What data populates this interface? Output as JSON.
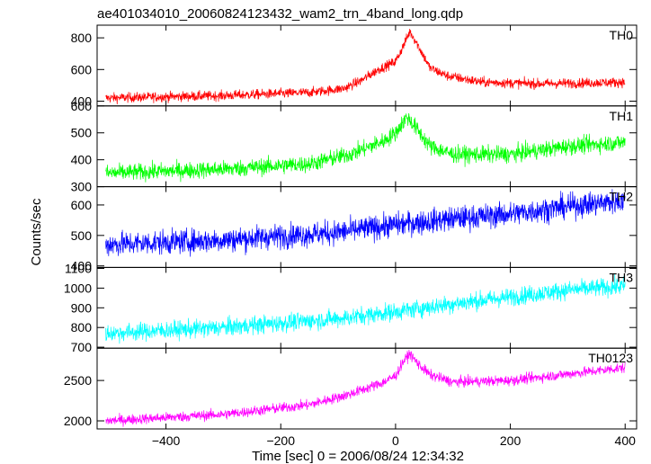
{
  "chart_data": {
    "type": "line",
    "title": "ae401034010_20060824123432_wam2_trn_4band_long.qdp",
    "xlabel": "Time [sec] 0 = 2006/08/24 12:34:32",
    "ylabel": "Counts/sec",
    "xlim": [
      -520,
      420
    ],
    "x_ticks": [
      -400,
      -200,
      0,
      200,
      400
    ],
    "x_tick_labels": [
      "−400",
      "−200",
      "0",
      "200",
      "400"
    ],
    "data_x_range": [
      -505,
      400
    ],
    "grid": false,
    "panels": [
      {
        "name": "TH0",
        "color": "#ff0000",
        "ylim": [
          370,
          880
        ],
        "y_ticks": [
          400,
          600,
          800
        ],
        "noise": 22,
        "trend": [
          [
            -505,
            420
          ],
          [
            -300,
            435
          ],
          [
            -150,
            455
          ],
          [
            -90,
            480
          ],
          [
            -60,
            530
          ],
          [
            -30,
            600
          ],
          [
            0,
            650
          ],
          [
            15,
            760
          ],
          [
            25,
            840
          ],
          [
            35,
            780
          ],
          [
            60,
            610
          ],
          [
            90,
            560
          ],
          [
            150,
            520
          ],
          [
            250,
            510
          ],
          [
            400,
            520
          ]
        ]
      },
      {
        "name": "TH1",
        "color": "#00ff00",
        "ylim": [
          300,
          600
        ],
        "y_ticks": [
          300,
          400,
          500,
          600
        ],
        "noise": 22,
        "trend": [
          [
            -505,
            350
          ],
          [
            -300,
            365
          ],
          [
            -150,
            385
          ],
          [
            -80,
            420
          ],
          [
            -20,
            470
          ],
          [
            0,
            500
          ],
          [
            20,
            560
          ],
          [
            35,
            520
          ],
          [
            60,
            450
          ],
          [
            100,
            420
          ],
          [
            200,
            420
          ],
          [
            300,
            450
          ],
          [
            400,
            465
          ]
        ]
      },
      {
        "name": "TH2",
        "color": "#0000ff",
        "ylim": [
          395,
          660
        ],
        "y_ticks": [
          400,
          500,
          600
        ],
        "noise": 28,
        "trend": [
          [
            -505,
            470
          ],
          [
            -300,
            485
          ],
          [
            -100,
            510
          ],
          [
            0,
            535
          ],
          [
            100,
            555
          ],
          [
            200,
            570
          ],
          [
            300,
            595
          ],
          [
            400,
            615
          ]
        ]
      },
      {
        "name": "TH3",
        "color": "#00ffff",
        "ylim": [
          695,
          1105
        ],
        "y_ticks": [
          700,
          800,
          900,
          1000,
          1100
        ],
        "noise": 32,
        "trend": [
          [
            -505,
            770
          ],
          [
            -300,
            800
          ],
          [
            -100,
            845
          ],
          [
            0,
            880
          ],
          [
            100,
            920
          ],
          [
            200,
            955
          ],
          [
            300,
            990
          ],
          [
            400,
            1010
          ]
        ]
      },
      {
        "name": "TH0123",
        "color": "#ff00ff",
        "ylim": [
          1900,
          2900
        ],
        "y_ticks": [
          2000,
          2500
        ],
        "noise": 45,
        "trend": [
          [
            -505,
            2000
          ],
          [
            -300,
            2080
          ],
          [
            -150,
            2200
          ],
          [
            -80,
            2330
          ],
          [
            -20,
            2480
          ],
          [
            0,
            2560
          ],
          [
            15,
            2750
          ],
          [
            25,
            2830
          ],
          [
            40,
            2700
          ],
          [
            60,
            2570
          ],
          [
            100,
            2480
          ],
          [
            200,
            2500
          ],
          [
            300,
            2580
          ],
          [
            400,
            2660
          ]
        ]
      }
    ]
  }
}
